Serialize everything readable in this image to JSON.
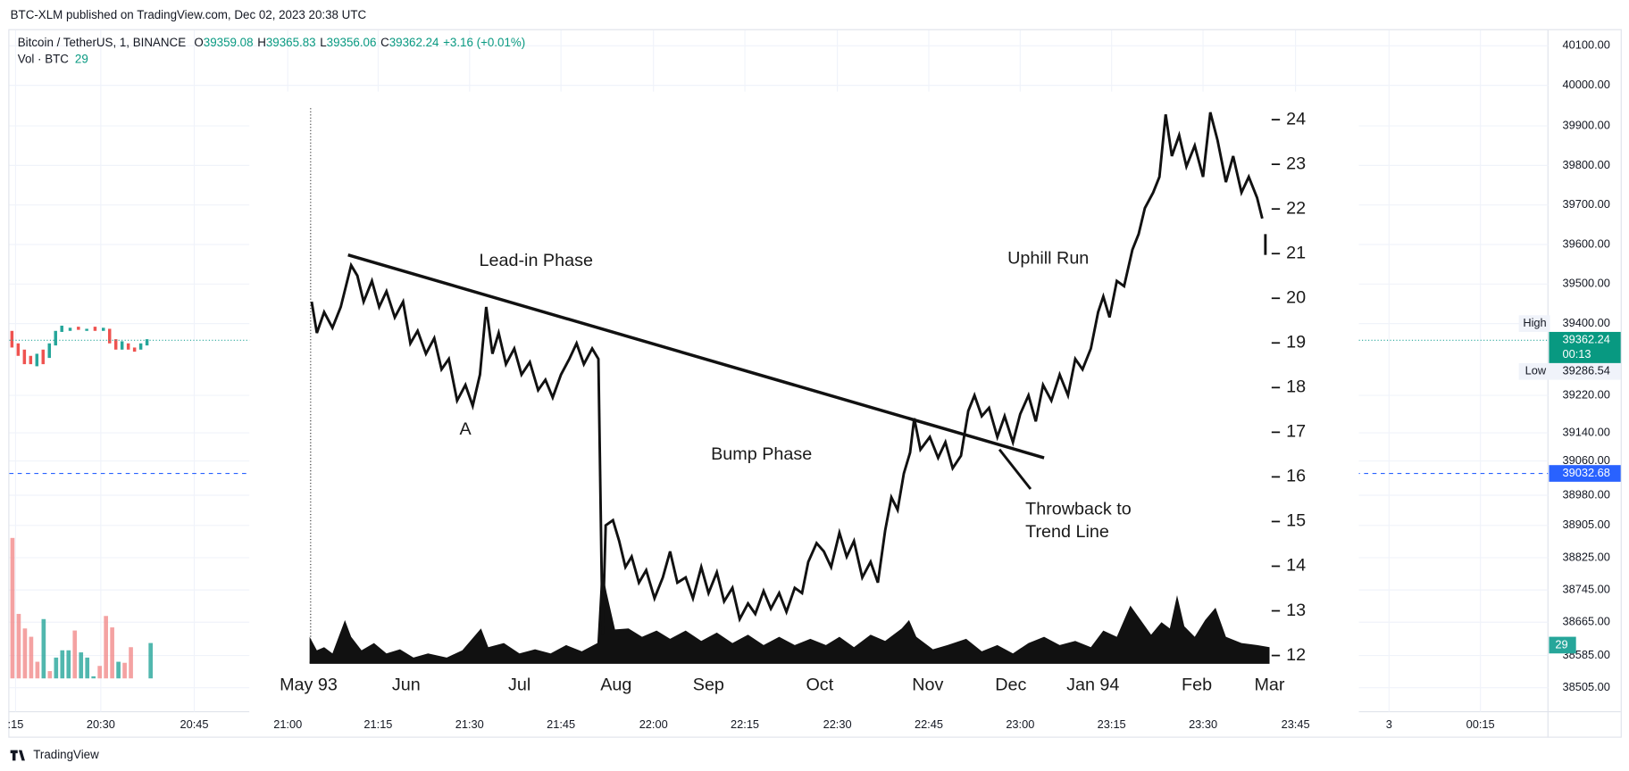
{
  "header": {
    "published": "BTC-XLM published on TradingView.com, Dec 02, 2023 20:38 UTC"
  },
  "legend": {
    "symbol": "Bitcoin / TetherUS, 1, BINANCE",
    "open": "O",
    "open_value": "39359.08",
    "high": "H",
    "high_value": "39365.83",
    "low": "L",
    "low_value": "39356.06",
    "close": "C",
    "close_value": "39362.24",
    "change": "+3.16 (+0.01%)",
    "volume": "Vol · BTC",
    "volume_value": "29"
  },
  "price_axis": {
    "labels": [
      "40100.00",
      "40000.00",
      "39900.00",
      "39800.00",
      "39700.00",
      "39600.00",
      "39500.00",
      "39400.00",
      "39220.00",
      "39140.00",
      "39060.00",
      "38980.00",
      "38905.00",
      "38825.00",
      "38745.00",
      "38665.00",
      "38585.00",
      "38505.00"
    ],
    "high_tag": "High",
    "last_price": "39362.24",
    "countdown": "00:13",
    "low_tag": "Low",
    "low_value": "39286.54",
    "line_price": "39032.68",
    "volume_badge": "29"
  },
  "time_axis": {
    "labels": [
      ":15",
      "20:30",
      "20:45",
      "21:00",
      "21:15",
      "21:30",
      "21:45",
      "22:00",
      "22:15",
      "22:30",
      "22:45",
      "23:00",
      "23:15",
      "23:30",
      "23:45",
      "3",
      "00:15"
    ]
  },
  "inset": {
    "y_labels": [
      "24",
      "23",
      "22",
      "21",
      "20",
      "19",
      "18",
      "17",
      "16",
      "15",
      "14",
      "13",
      "12"
    ],
    "x_labels": [
      "May 93",
      "Jun",
      "Jul",
      "Aug",
      "Sep",
      "Oct",
      "Nov",
      "Dec",
      "Jan 94",
      "Feb",
      "Mar"
    ],
    "annotations": {
      "lead_in": "Lead-in Phase",
      "point_a": "A",
      "bump": "Bump Phase",
      "uphill": "Uphill Run",
      "throwback_1": "Throwback to",
      "throwback_2": "Trend Line"
    }
  },
  "footer": {
    "brand": "TradingView"
  }
}
